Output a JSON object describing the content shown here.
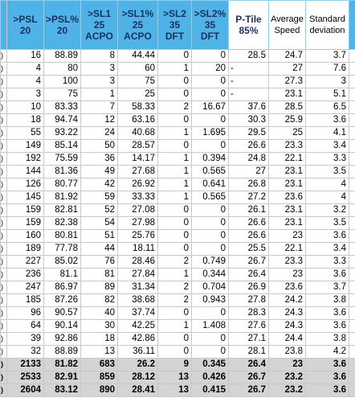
{
  "headers": [
    {
      "lines": [
        ">PSL",
        "20"
      ]
    },
    {
      "lines": [
        ">PSL%",
        "20"
      ]
    },
    {
      "lines": [
        ">SL1",
        "25",
        "ACPO"
      ]
    },
    {
      "lines": [
        ">SL1%",
        "25",
        "ACPO"
      ]
    },
    {
      "lines": [
        ">SL2",
        "35",
        "DFT"
      ]
    },
    {
      "lines": [
        ">SL2%",
        "35",
        "DFT"
      ]
    },
    {
      "lines": [
        "P-Tile",
        "85%"
      ]
    },
    {
      "lines": [
        "Average",
        "Speed"
      ]
    },
    {
      "lines": [
        "Standard",
        "deviation"
      ]
    }
  ],
  "rows": [
    {
      "edge": ")",
      "psl": "16",
      "pslp": "88.89",
      "sl1": "8",
      "sl1p": "44.44",
      "sl2": "0",
      "sl2p": "0",
      "pt": "28.5",
      "avg": "24.7",
      "sd": "3.7"
    },
    {
      "edge": ")",
      "psl": "4",
      "pslp": "80",
      "sl1": "3",
      "sl1p": "60",
      "sl2": "1",
      "sl2p": "20",
      "pt": "-",
      "avg": "27",
      "sd": "7.6"
    },
    {
      "edge": ")",
      "psl": "4",
      "pslp": "100",
      "sl1": "3",
      "sl1p": "75",
      "sl2": "0",
      "sl2p": "0",
      "pt": "-",
      "avg": "27.3",
      "sd": "3"
    },
    {
      "edge": ")",
      "psl": "3",
      "pslp": "75",
      "sl1": "1",
      "sl1p": "25",
      "sl2": "0",
      "sl2p": "0",
      "pt": "-",
      "avg": "23.1",
      "sd": "5.1"
    },
    {
      "edge": ")",
      "psl": "10",
      "pslp": "83.33",
      "sl1": "7",
      "sl1p": "58.33",
      "sl2": "2",
      "sl2p": "16.67",
      "pt": "37.6",
      "avg": "28.5",
      "sd": "6.5"
    },
    {
      "edge": ")",
      "psl": "18",
      "pslp": "94.74",
      "sl1": "12",
      "sl1p": "63.16",
      "sl2": "0",
      "sl2p": "0",
      "pt": "30.3",
      "avg": "25.9",
      "sd": "3.6"
    },
    {
      "edge": ")",
      "psl": "55",
      "pslp": "93.22",
      "sl1": "24",
      "sl1p": "40.68",
      "sl2": "1",
      "sl2p": "1.695",
      "pt": "29.5",
      "avg": "25",
      "sd": "4.1"
    },
    {
      "edge": ")",
      "psl": "149",
      "pslp": "85.14",
      "sl1": "50",
      "sl1p": "28.57",
      "sl2": "0",
      "sl2p": "0",
      "pt": "26.6",
      "avg": "23.3",
      "sd": "3.4"
    },
    {
      "edge": ")",
      "psl": "192",
      "pslp": "75.59",
      "sl1": "36",
      "sl1p": "14.17",
      "sl2": "1",
      "sl2p": "0.394",
      "pt": "24.8",
      "avg": "22.1",
      "sd": "3.3"
    },
    {
      "edge": ")",
      "psl": "144",
      "pslp": "81.36",
      "sl1": "49",
      "sl1p": "27.68",
      "sl2": "1",
      "sl2p": "0.565",
      "pt": "27",
      "avg": "23.1",
      "sd": "3.5"
    },
    {
      "edge": ")",
      "psl": "126",
      "pslp": "80.77",
      "sl1": "42",
      "sl1p": "26.92",
      "sl2": "1",
      "sl2p": "0.641",
      "pt": "26.8",
      "avg": "23.1",
      "sd": "4"
    },
    {
      "edge": ")",
      "psl": "145",
      "pslp": "81.92",
      "sl1": "59",
      "sl1p": "33.33",
      "sl2": "1",
      "sl2p": "0.565",
      "pt": "27.2",
      "avg": "23.6",
      "sd": "4"
    },
    {
      "edge": ")",
      "psl": "159",
      "pslp": "82.81",
      "sl1": "52",
      "sl1p": "27.08",
      "sl2": "0",
      "sl2p": "0",
      "pt": "26.1",
      "avg": "23.1",
      "sd": "3.2"
    },
    {
      "edge": ")",
      "psl": "159",
      "pslp": "82.38",
      "sl1": "54",
      "sl1p": "27.98",
      "sl2": "0",
      "sl2p": "0",
      "pt": "26.6",
      "avg": "23.1",
      "sd": "3.5"
    },
    {
      "edge": ")",
      "psl": "160",
      "pslp": "80.81",
      "sl1": "51",
      "sl1p": "25.76",
      "sl2": "0",
      "sl2p": "0",
      "pt": "26.6",
      "avg": "23",
      "sd": "3.6"
    },
    {
      "edge": ")",
      "psl": "189",
      "pslp": "77.78",
      "sl1": "44",
      "sl1p": "18.11",
      "sl2": "0",
      "sl2p": "0",
      "pt": "25.5",
      "avg": "22.1",
      "sd": "3.4"
    },
    {
      "edge": ")",
      "psl": "227",
      "pslp": "85.02",
      "sl1": "76",
      "sl1p": "28.46",
      "sl2": "2",
      "sl2p": "0.749",
      "pt": "26.7",
      "avg": "23.3",
      "sd": "3.3"
    },
    {
      "edge": ")",
      "psl": "236",
      "pslp": "81.1",
      "sl1": "81",
      "sl1p": "27.84",
      "sl2": "1",
      "sl2p": "0.344",
      "pt": "26.4",
      "avg": "23",
      "sd": "3.6"
    },
    {
      "edge": ")",
      "psl": "247",
      "pslp": "86.97",
      "sl1": "89",
      "sl1p": "31.34",
      "sl2": "2",
      "sl2p": "0.704",
      "pt": "26.9",
      "avg": "23.6",
      "sd": "3.7"
    },
    {
      "edge": ")",
      "psl": "185",
      "pslp": "87.26",
      "sl1": "82",
      "sl1p": "38.68",
      "sl2": "2",
      "sl2p": "0.943",
      "pt": "27.8",
      "avg": "24.2",
      "sd": "3.8"
    },
    {
      "edge": ")",
      "psl": "96",
      "pslp": "90.57",
      "sl1": "40",
      "sl1p": "37.74",
      "sl2": "0",
      "sl2p": "0",
      "pt": "28.3",
      "avg": "24.3",
      "sd": "3.6"
    },
    {
      "edge": ")",
      "psl": "64",
      "pslp": "90.14",
      "sl1": "30",
      "sl1p": "42.25",
      "sl2": "1",
      "sl2p": "1.408",
      "pt": "27.6",
      "avg": "24.3",
      "sd": "3.6"
    },
    {
      "edge": ")",
      "psl": "39",
      "pslp": "92.86",
      "sl1": "18",
      "sl1p": "42.86",
      "sl2": "0",
      "sl2p": "0",
      "pt": "27.1",
      "avg": "24.4",
      "sd": "3.8"
    },
    {
      "edge": ")",
      "psl": "32",
      "pslp": "88.89",
      "sl1": "13",
      "sl1p": "36.11",
      "sl2": "0",
      "sl2p": "0",
      "pt": "28.1",
      "avg": "23.8",
      "sd": "4.2"
    }
  ],
  "summary_rows": [
    {
      "edge": ")",
      "psl": "2133",
      "pslp": "81.82",
      "sl1": "683",
      "sl1p": "26.2",
      "sl2": "9",
      "sl2p": "0.345",
      "pt": "26.4",
      "avg": "23",
      "sd": "3.6"
    },
    {
      "edge": ")",
      "psl": "2533",
      "pslp": "82.91",
      "sl1": "859",
      "sl1p": "28.12",
      "sl2": "13",
      "sl2p": "0.426",
      "pt": "26.7",
      "avg": "23.2",
      "sd": "3.6"
    },
    {
      "edge": ")",
      "psl": "2604",
      "pslp": "83.12",
      "sl1": "890",
      "sl1p": "28.41",
      "sl2": "13",
      "sl2p": "0.415",
      "pt": "26.7",
      "avg": "23.2",
      "sd": "3.6"
    }
  ],
  "colors": {
    "header_blue": "#4fb3e8",
    "summary_gray": "#d4d4d4",
    "header_text": "#1d2f5e"
  }
}
